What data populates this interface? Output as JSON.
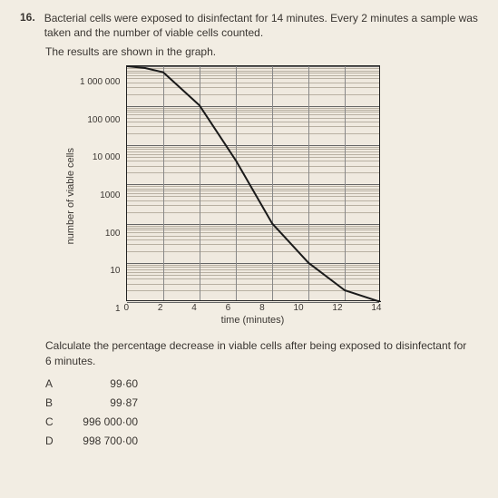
{
  "question": {
    "number": "16.",
    "text": "Bacterial cells were exposed to disinfectant for 14 minutes. Every 2 minutes a sample was taken and the number of viable cells counted.",
    "subtext": "The results are shown in the graph."
  },
  "chart": {
    "type": "line",
    "ylabel": "number of viable cells",
    "xlabel": "time (minutes)",
    "yscale": "log",
    "ylim": [
      1,
      1000000
    ],
    "yticks": [
      "1 000 000",
      "100 000",
      "10 000",
      "1000",
      "100",
      "10",
      "1"
    ],
    "xlim": [
      0,
      14
    ],
    "xticks": [
      "0",
      "2",
      "4",
      "6",
      "8",
      "10",
      "12",
      "14"
    ],
    "line_color": "#1a1a1a",
    "line_width": 2,
    "grid_color": "#888888",
    "minor_grid_color": "#b8b0a2",
    "background_color": "#efe9df",
    "points": [
      {
        "x": 0,
        "y": 1000000
      },
      {
        "x": 1,
        "y": 900000
      },
      {
        "x": 2,
        "y": 700000
      },
      {
        "x": 4,
        "y": 100000
      },
      {
        "x": 6,
        "y": 4000
      },
      {
        "x": 8,
        "y": 100
      },
      {
        "x": 10,
        "y": 10
      },
      {
        "x": 12,
        "y": 2
      },
      {
        "x": 14,
        "y": 1
      }
    ]
  },
  "calculation_text": "Calculate the percentage decrease in viable cells after being exposed to disinfectant for 6 minutes.",
  "options": [
    {
      "letter": "A",
      "value": "99·60"
    },
    {
      "letter": "B",
      "value": "99·87"
    },
    {
      "letter": "C",
      "value": "996 000·00"
    },
    {
      "letter": "D",
      "value": "998 700·00"
    }
  ]
}
